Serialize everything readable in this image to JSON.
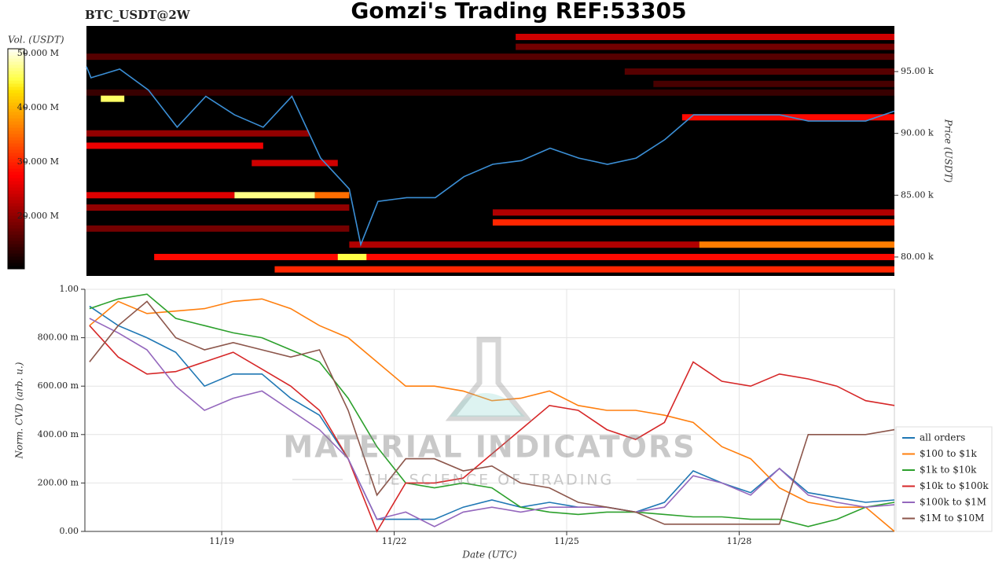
{
  "watermark": {
    "title": "MATERIAL INDICATORS",
    "tagline": "THE SCIENCE OF TRADING"
  },
  "chart_data": [
    {
      "type": "heatmap",
      "title": "Gomzi's Trading REF:53305",
      "subtitle": "BTC_USDT@2W",
      "colorbar_label": "Vol. (USDT)",
      "ylabel": "Price (USDT)",
      "colormap": "hot",
      "clim": [
        10.3,
        50.9
      ],
      "cticks": [
        {
          "value": 20,
          "label": "20.000 M"
        },
        {
          "value": 30,
          "label": "30.000 M"
        },
        {
          "value": 40,
          "label": "40.000 M"
        },
        {
          "value": 50,
          "label": "50.000 M"
        }
      ],
      "xlim": [
        16.62,
        30.7
      ],
      "ylim": [
        78.47,
        98.69
      ],
      "yticks": [
        {
          "value": 80,
          "label": "80.00 k"
        },
        {
          "value": 85,
          "label": "85.00 k"
        },
        {
          "value": 90,
          "label": "90.00 k"
        },
        {
          "value": 95,
          "label": "95.00 k"
        }
      ],
      "color": "#3b8fd6",
      "levels": [
        {
          "price": 96.2,
          "start": 16.62,
          "end": 30.7,
          "volume": 16
        },
        {
          "price": 93.3,
          "start": 16.62,
          "end": 30.7,
          "volume": 14
        },
        {
          "price": 97.8,
          "start": 24.1,
          "end": 30.7,
          "volume": 24
        },
        {
          "price": 97.0,
          "start": 24.1,
          "end": 30.7,
          "volume": 18
        },
        {
          "price": 95.0,
          "start": 26.0,
          "end": 30.7,
          "volume": 16
        },
        {
          "price": 94.0,
          "start": 26.5,
          "end": 30.7,
          "volume": 15
        },
        {
          "price": 91.3,
          "start": 27.0,
          "end": 30.7,
          "volume": 28
        },
        {
          "price": 92.8,
          "start": 16.87,
          "end": 17.28,
          "volume": 46
        },
        {
          "price": 90.0,
          "start": 16.62,
          "end": 20.5,
          "volume": 20
        },
        {
          "price": 89.0,
          "start": 16.62,
          "end": 19.7,
          "volume": 26
        },
        {
          "price": 87.6,
          "start": 19.5,
          "end": 21.0,
          "volume": 24
        },
        {
          "price": 85.0,
          "start": 16.62,
          "end": 19.2,
          "volume": 25
        },
        {
          "price": 85.0,
          "start": 19.2,
          "end": 20.6,
          "volume": 47
        },
        {
          "price": 85.0,
          "start": 20.6,
          "end": 21.2,
          "volume": 35
        },
        {
          "price": 84.0,
          "start": 16.62,
          "end": 21.2,
          "volume": 20
        },
        {
          "price": 83.6,
          "start": 23.7,
          "end": 30.7,
          "volume": 22
        },
        {
          "price": 82.8,
          "start": 23.7,
          "end": 30.7,
          "volume": 30
        },
        {
          "price": 82.3,
          "start": 16.62,
          "end": 21.2,
          "volume": 18
        },
        {
          "price": 81.0,
          "start": 21.2,
          "end": 27.3,
          "volume": 22
        },
        {
          "price": 81.0,
          "start": 27.3,
          "end": 30.7,
          "volume": 36
        },
        {
          "price": 80.0,
          "start": 17.8,
          "end": 30.7,
          "volume": 28
        },
        {
          "price": 80.0,
          "start": 21.0,
          "end": 21.5,
          "volume": 45
        },
        {
          "price": 79.0,
          "start": 19.9,
          "end": 30.7,
          "volume": 30
        }
      ],
      "x": [
        16.62,
        16.7,
        17.2,
        17.7,
        18.2,
        18.7,
        19.2,
        19.7,
        20.2,
        20.7,
        21.2,
        21.4,
        21.7,
        22.2,
        22.7,
        23.2,
        23.7,
        24.2,
        24.7,
        25.2,
        25.7,
        26.2,
        26.7,
        27.2,
        27.7,
        28.2,
        28.7,
        29.2,
        29.7,
        30.2,
        30.7
      ],
      "values": [
        95.4,
        94.5,
        95.2,
        93.5,
        90.5,
        93,
        91.5,
        90.5,
        93,
        88,
        85.5,
        81,
        84.5,
        84.8,
        84.8,
        86.5,
        87.5,
        87.8,
        88.8,
        88,
        87.5,
        88,
        89.5,
        91.5,
        91.5,
        91.5,
        91.5,
        91,
        91,
        91,
        91.8
      ]
    },
    {
      "type": "line",
      "xlabel": "Date (UTC)",
      "ylabel": "Norm. CVD (arb. u.)",
      "xlim": [
        16.62,
        30.7
      ],
      "ylim": [
        0,
        1
      ],
      "xticks": [
        {
          "value": 19,
          "label": "11/19"
        },
        {
          "value": 22,
          "label": "11/22"
        },
        {
          "value": 25,
          "label": "11/25"
        },
        {
          "value": 28,
          "label": "11/28"
        }
      ],
      "yticks": [
        {
          "value": 0,
          "label": "0.00"
        },
        {
          "value": 0.2,
          "label": "200.00 m"
        },
        {
          "value": 0.4,
          "label": "400.00 m"
        },
        {
          "value": 0.6,
          "label": "600.00 m"
        },
        {
          "value": 0.8,
          "label": "800.00 m"
        },
        {
          "value": 1,
          "label": "1.00"
        }
      ],
      "grid": true,
      "legend": "lower right",
      "x": [
        16.7,
        17.2,
        17.7,
        18.2,
        18.7,
        19.2,
        19.7,
        20.2,
        20.7,
        21.2,
        21.7,
        22.2,
        22.7,
        23.2,
        23.7,
        24.2,
        24.7,
        25.2,
        25.7,
        26.2,
        26.7,
        27.2,
        27.7,
        28.2,
        28.7,
        29.2,
        29.7,
        30.2,
        30.7
      ],
      "series": [
        {
          "name": "all orders",
          "color": "#1f77b4",
          "values": [
            0.93,
            0.85,
            0.8,
            0.74,
            0.6,
            0.65,
            0.65,
            0.55,
            0.48,
            0.3,
            0.05,
            0.05,
            0.05,
            0.1,
            0.13,
            0.1,
            0.12,
            0.1,
            0.1,
            0.08,
            0.12,
            0.25,
            0.2,
            0.16,
            0.26,
            0.16,
            0.14,
            0.12,
            0.13
          ]
        },
        {
          "name": "$100 to $1k",
          "color": "#ff7f0e",
          "values": [
            0.85,
            0.95,
            0.9,
            0.91,
            0.92,
            0.95,
            0.96,
            0.92,
            0.85,
            0.8,
            0.7,
            0.6,
            0.6,
            0.58,
            0.54,
            0.55,
            0.58,
            0.52,
            0.5,
            0.5,
            0.48,
            0.45,
            0.35,
            0.3,
            0.18,
            0.12,
            0.1,
            0.1,
            0.0
          ]
        },
        {
          "name": "$1k to $10k",
          "color": "#2ca02c",
          "values": [
            0.92,
            0.96,
            0.98,
            0.88,
            0.85,
            0.82,
            0.8,
            0.75,
            0.7,
            0.55,
            0.35,
            0.2,
            0.18,
            0.2,
            0.18,
            0.1,
            0.08,
            0.07,
            0.08,
            0.08,
            0.07,
            0.06,
            0.06,
            0.05,
            0.05,
            0.02,
            0.05,
            0.1,
            0.12
          ]
        },
        {
          "name": "$10k to $100k",
          "color": "#d62728",
          "values": [
            0.85,
            0.72,
            0.65,
            0.66,
            0.7,
            0.74,
            0.67,
            0.6,
            0.5,
            0.3,
            0.0,
            0.2,
            0.2,
            0.22,
            0.32,
            0.42,
            0.52,
            0.5,
            0.42,
            0.38,
            0.45,
            0.7,
            0.62,
            0.6,
            0.65,
            0.63,
            0.6,
            0.54,
            0.52
          ]
        },
        {
          "name": "$100k to $1M",
          "color": "#9467bd",
          "values": [
            0.88,
            0.82,
            0.75,
            0.6,
            0.5,
            0.55,
            0.58,
            0.5,
            0.42,
            0.3,
            0.05,
            0.08,
            0.02,
            0.08,
            0.1,
            0.08,
            0.1,
            0.1,
            0.1,
            0.08,
            0.1,
            0.23,
            0.2,
            0.15,
            0.26,
            0.15,
            0.12,
            0.1,
            0.11
          ]
        },
        {
          "name": "$1M to $10M",
          "color": "#8c564b",
          "values": [
            0.7,
            0.85,
            0.95,
            0.8,
            0.75,
            0.78,
            0.75,
            0.72,
            0.75,
            0.5,
            0.15,
            0.3,
            0.3,
            0.25,
            0.27,
            0.2,
            0.18,
            0.12,
            0.1,
            0.08,
            0.03,
            0.03,
            0.03,
            0.03,
            0.03,
            0.4,
            0.4,
            0.4,
            0.42
          ]
        }
      ]
    }
  ]
}
